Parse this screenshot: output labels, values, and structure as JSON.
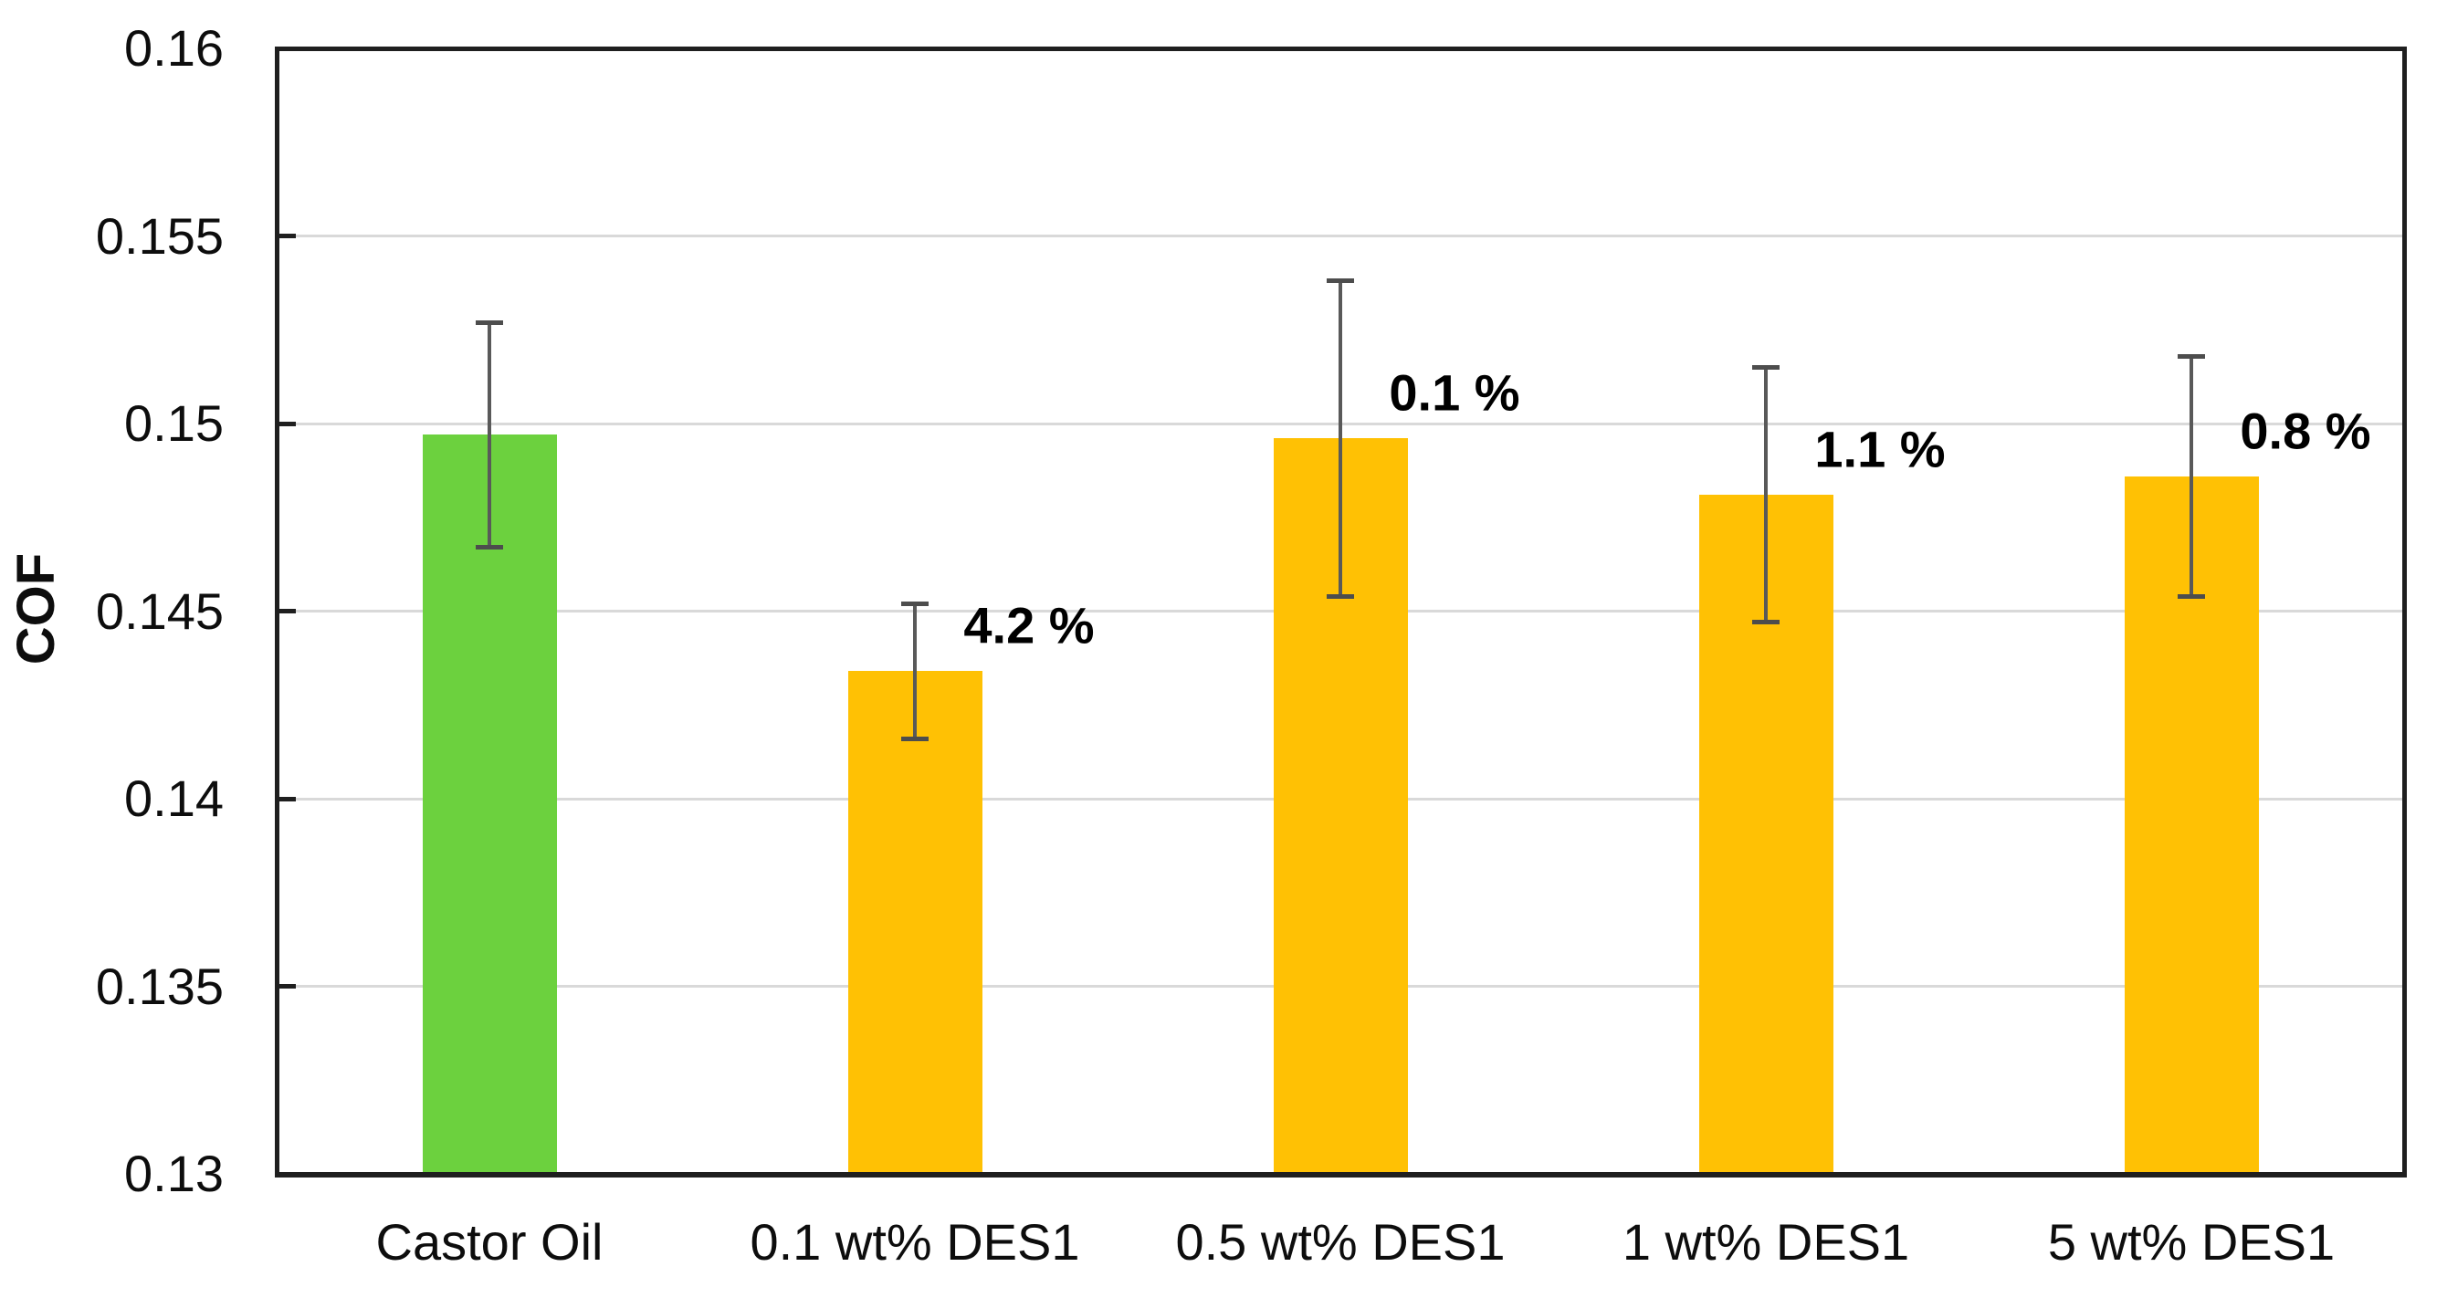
{
  "chart_data": {
    "type": "bar",
    "title": "",
    "xlabel": "",
    "ylabel": "COF",
    "categories": [
      "Castor Oil",
      "0.1 wt% DES1",
      "0.5 wt% DES1",
      "1 wt% DES1",
      "5 wt% DES1"
    ],
    "values": [
      0.1497,
      0.1434,
      0.1496,
      0.1481,
      0.1486
    ],
    "errors": [
      0.003,
      0.0018,
      0.0042,
      0.0034,
      0.0032
    ],
    "bar_labels": [
      "",
      "4.2 %",
      "0.1 %",
      "1.1 %",
      "0.8 %"
    ],
    "bar_colors": [
      "#6CD13E",
      "#FFC104",
      "#FFC104",
      "#FFC104",
      "#FFC104"
    ],
    "ylim": [
      0.13,
      0.16
    ],
    "ytick_step": 0.005,
    "ytick_labels": [
      "0.13",
      "0.135",
      "0.14",
      "0.145",
      "0.15",
      "0.155",
      "0.16"
    ],
    "grid": "horizontal",
    "legend": "none",
    "gridline_color": "#d9d9d9",
    "axis_color": "#1f1f1f",
    "error_bar_color": "#595959",
    "error_cap_color": "#4d4d4d",
    "background_color": "#ffffff"
  }
}
